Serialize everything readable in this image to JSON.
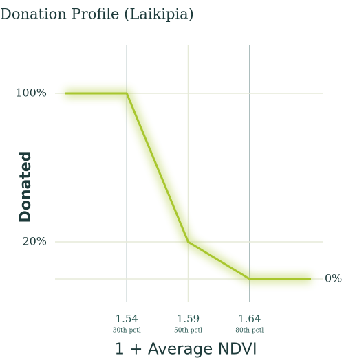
{
  "chart_data": {
    "type": "line",
    "title": "Donation Profile (Laikipia)",
    "xlabel": "1 + Average NDVI",
    "ylabel": "Donated",
    "x": [
      1.49,
      1.54,
      1.59,
      1.64,
      1.69
    ],
    "values": [
      100,
      100,
      20,
      0,
      0
    ],
    "color": "#a8c62e",
    "xlim": [
      1.49,
      1.69
    ],
    "ylim": [
      0,
      100
    ],
    "xticks": [
      1.54,
      1.59,
      1.64
    ],
    "xtick_notes": [
      "30th pctl",
      "50th pctl",
      "80th pctl"
    ],
    "yticks": [
      {
        "value": 0,
        "label": "0%"
      },
      {
        "value": 20,
        "label": "20%"
      },
      {
        "value": 100,
        "label": "100%"
      }
    ],
    "grid": true
  }
}
